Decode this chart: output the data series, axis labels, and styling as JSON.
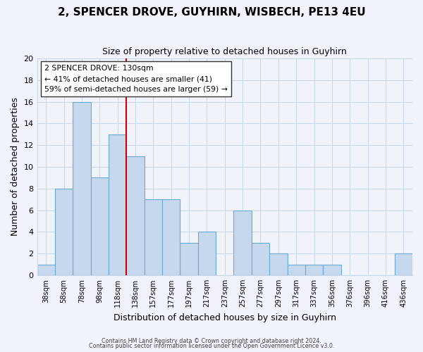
{
  "title": "2, SPENCER DROVE, GUYHIRN, WISBECH, PE13 4EU",
  "subtitle": "Size of property relative to detached houses in Guyhirn",
  "xlabel": "Distribution of detached houses by size in Guyhirn",
  "ylabel": "Number of detached properties",
  "bin_labels": [
    "38sqm",
    "58sqm",
    "78sqm",
    "98sqm",
    "118sqm",
    "138sqm",
    "157sqm",
    "177sqm",
    "197sqm",
    "217sqm",
    "237sqm",
    "257sqm",
    "277sqm",
    "297sqm",
    "317sqm",
    "337sqm",
    "356sqm",
    "376sqm",
    "396sqm",
    "416sqm",
    "436sqm"
  ],
  "bar_heights": [
    1,
    8,
    16,
    9,
    13,
    11,
    7,
    7,
    3,
    4,
    0,
    6,
    3,
    2,
    1,
    1,
    1,
    0,
    0,
    0,
    2
  ],
  "bar_color": "#c5d8ee",
  "bar_edge_color": "#6aaad4",
  "ylim": [
    0,
    20
  ],
  "yticks": [
    0,
    2,
    4,
    6,
    8,
    10,
    12,
    14,
    16,
    18,
    20
  ],
  "vline_x": 4.5,
  "vline_color": "#cc0000",
  "annotation_title": "2 SPENCER DROVE: 130sqm",
  "annotation_line1": "← 41% of detached houses are smaller (41)",
  "annotation_line2": "59% of semi-detached houses are larger (59) →",
  "footer1": "Contains HM Land Registry data © Crown copyright and database right 2024.",
  "footer2": "Contains public sector information licensed under the Open Government Licence v3.0.",
  "background_color": "#f0f4fa",
  "grid_color": "#c8d8e8",
  "fig_width": 6.0,
  "fig_height": 5.0,
  "dpi": 100
}
